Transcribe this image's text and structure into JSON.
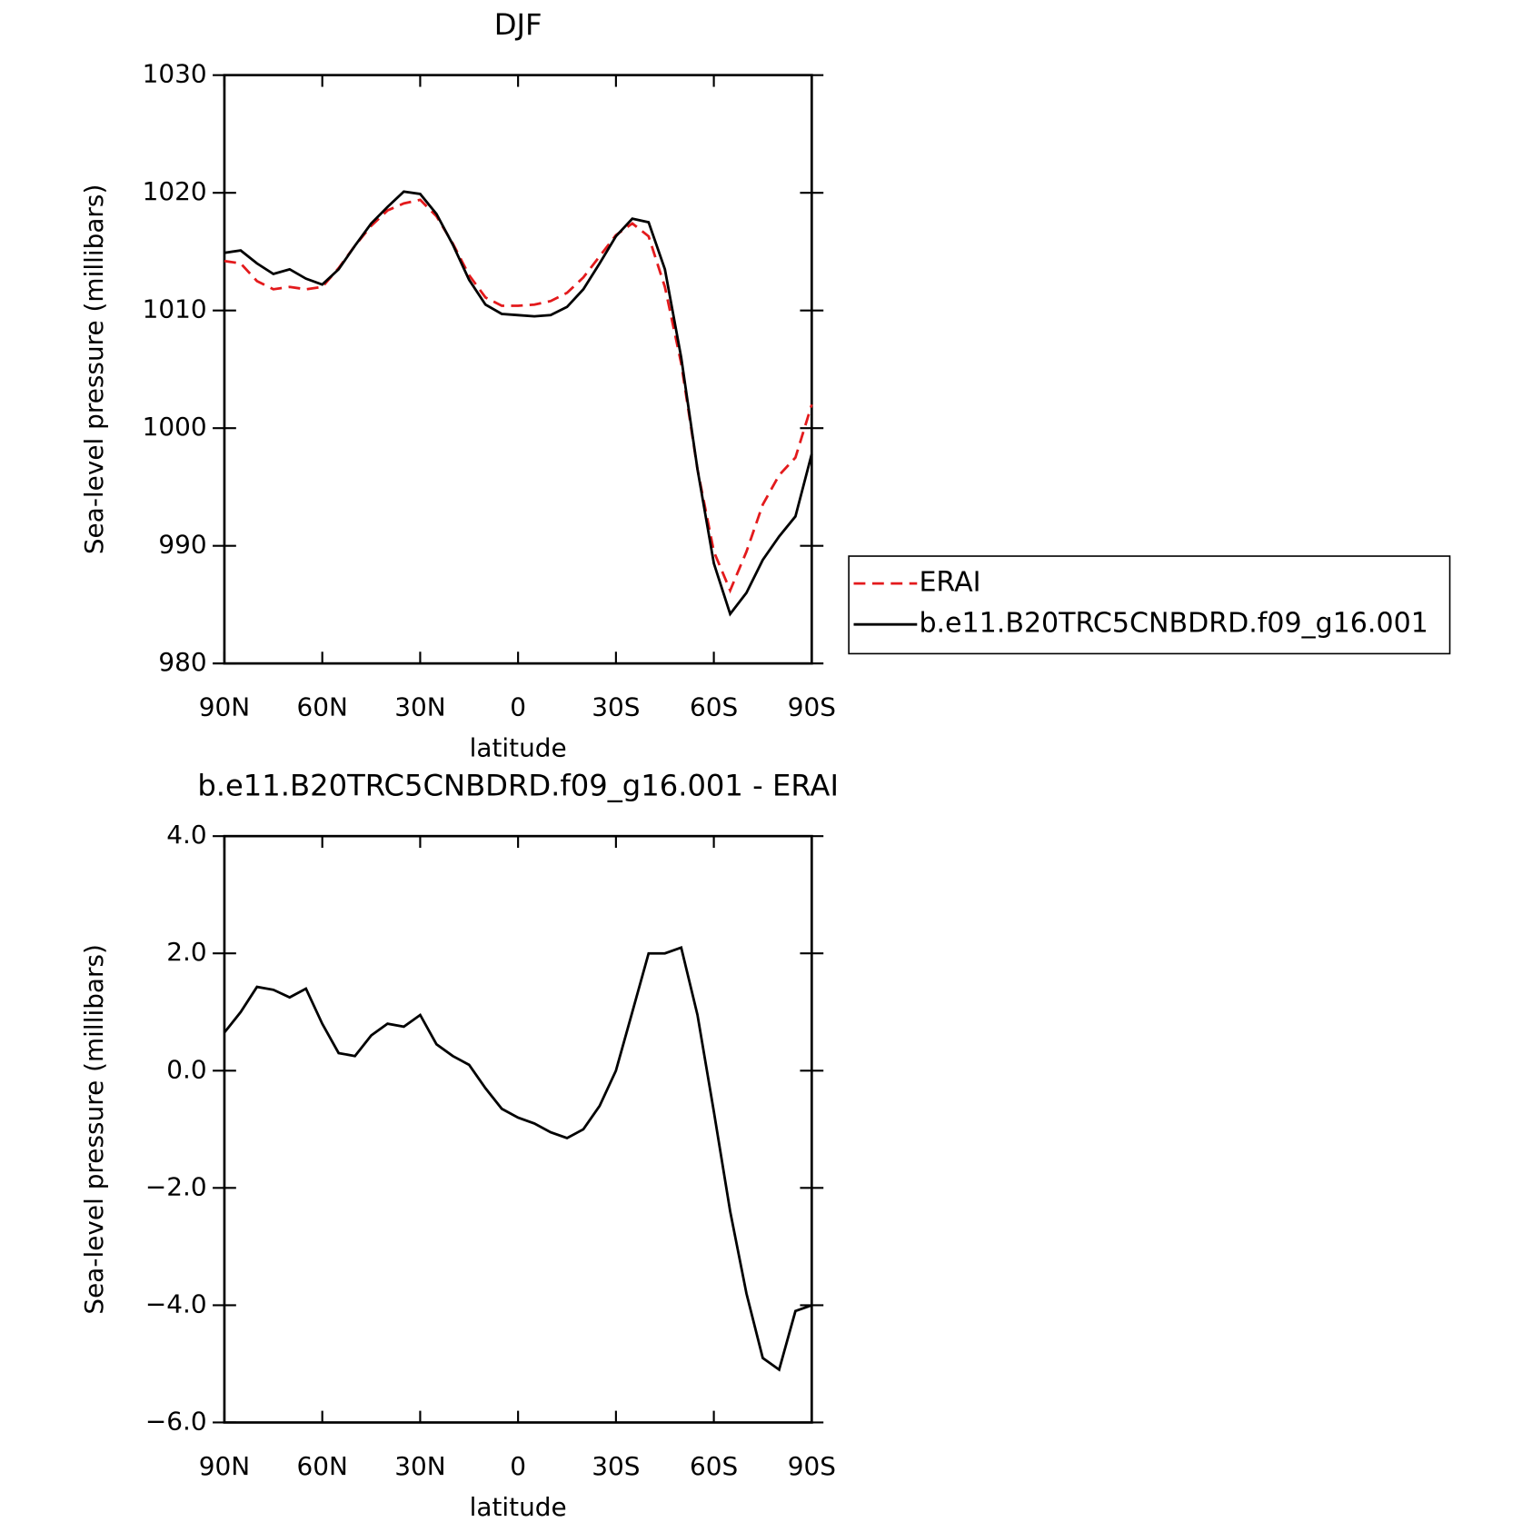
{
  "chart_data": [
    {
      "type": "line",
      "title": "DJF",
      "xlabel": "latitude",
      "ylabel": "Sea-level pressure (millibars)",
      "x": [
        90,
        85,
        80,
        75,
        70,
        65,
        60,
        55,
        50,
        45,
        40,
        35,
        30,
        25,
        20,
        15,
        10,
        5,
        0,
        -5,
        -10,
        -15,
        -20,
        -25,
        -30,
        -35,
        -40,
        -45,
        -50,
        -55,
        -60,
        -65,
        -70,
        -75,
        -80,
        -85,
        -90
      ],
      "xlim": [
        90,
        -90
      ],
      "xticks": [
        {
          "value": 90,
          "label": "90N"
        },
        {
          "value": 60,
          "label": "60N"
        },
        {
          "value": 30,
          "label": "30N"
        },
        0,
        {
          "value": -30,
          "label": "30S"
        },
        {
          "value": -60,
          "label": "60S"
        },
        {
          "value": -90,
          "label": "90S"
        }
      ],
      "ylim": [
        980,
        1030
      ],
      "yticks": [
        980,
        990,
        1000,
        1010,
        1020,
        1030
      ],
      "legend": "right",
      "series": [
        {
          "name": "ERAI",
          "color": "#e31a1c",
          "dashed": true,
          "values": [
            1014.2,
            1014,
            1012.5,
            1011.8,
            1012,
            1011.8,
            1012,
            1013.6,
            1015.5,
            1017.2,
            1018.5,
            1019.1,
            1019.4,
            1018,
            1015.7,
            1013,
            1011.1,
            1010.4,
            1010.4,
            1010.5,
            1010.8,
            1011.5,
            1012.8,
            1014.6,
            1016.4,
            1017.4,
            1016.3,
            1012,
            1005.5,
            996.5,
            989.5,
            986.2,
            989.5,
            993.5,
            996,
            997.5,
            1002
          ]
        },
        {
          "name": "b.e11.B20TRC5CNBDRD.f09_g16.001",
          "color": "#000000",
          "dashed": false,
          "values": [
            1014.9,
            1015.1,
            1014,
            1013.1,
            1013.5,
            1012.7,
            1012.2,
            1013.5,
            1015.5,
            1017.4,
            1018.8,
            1020.1,
            1019.9,
            1018.2,
            1015.6,
            1012.6,
            1010.5,
            1009.7,
            1009.6,
            1009.5,
            1009.6,
            1010.3,
            1011.8,
            1014,
            1016.3,
            1017.8,
            1017.5,
            1013.5,
            1006,
            996.5,
            988.5,
            984.2,
            986,
            988.8,
            990.8,
            992.5,
            997.8
          ]
        }
      ]
    },
    {
      "type": "line",
      "title": "b.e11.B20TRC5CNBDRD.f09_g16.001 - ERAI",
      "xlabel": "latitude",
      "ylabel": "Sea-level pressure (millibars)",
      "x": [
        90,
        85,
        80,
        75,
        70,
        65,
        60,
        55,
        50,
        45,
        40,
        35,
        30,
        25,
        20,
        15,
        10,
        5,
        0,
        -5,
        -10,
        -15,
        -20,
        -25,
        -30,
        -35,
        -40,
        -45,
        -50,
        -55,
        -60,
        -65,
        -70,
        -75,
        -80,
        -85,
        -90
      ],
      "xlim": [
        90,
        -90
      ],
      "xticks": [
        {
          "value": 90,
          "label": "90N"
        },
        {
          "value": 60,
          "label": "60N"
        },
        {
          "value": 30,
          "label": "30N"
        },
        0,
        {
          "value": -30,
          "label": "30S"
        },
        {
          "value": -60,
          "label": "60S"
        },
        {
          "value": -90,
          "label": "90S"
        }
      ],
      "ylim": [
        -6,
        4
      ],
      "yticks": [
        {
          "value": -6,
          "label": "−6.0"
        },
        {
          "value": -4,
          "label": "−4.0"
        },
        {
          "value": -2,
          "label": "−2.0"
        },
        {
          "value": 0,
          "label": "0.0"
        },
        {
          "value": 2,
          "label": "2.0"
        },
        {
          "value": 4,
          "label": "4.0"
        }
      ],
      "color": "#000000",
      "values": [
        0.65,
        1.0,
        1.43,
        1.38,
        1.25,
        1.4,
        0.8,
        0.3,
        0.25,
        0.6,
        0.8,
        0.75,
        0.95,
        0.45,
        0.25,
        0.1,
        -0.3,
        -0.65,
        -0.8,
        -0.9,
        -1.05,
        -1.15,
        -1.0,
        -0.6,
        0.0,
        1.0,
        2.0,
        2.0,
        2.1,
        0.95,
        -0.7,
        -2.4,
        -3.8,
        -4.9,
        -5.1,
        -4.1,
        -4.0
      ]
    }
  ]
}
